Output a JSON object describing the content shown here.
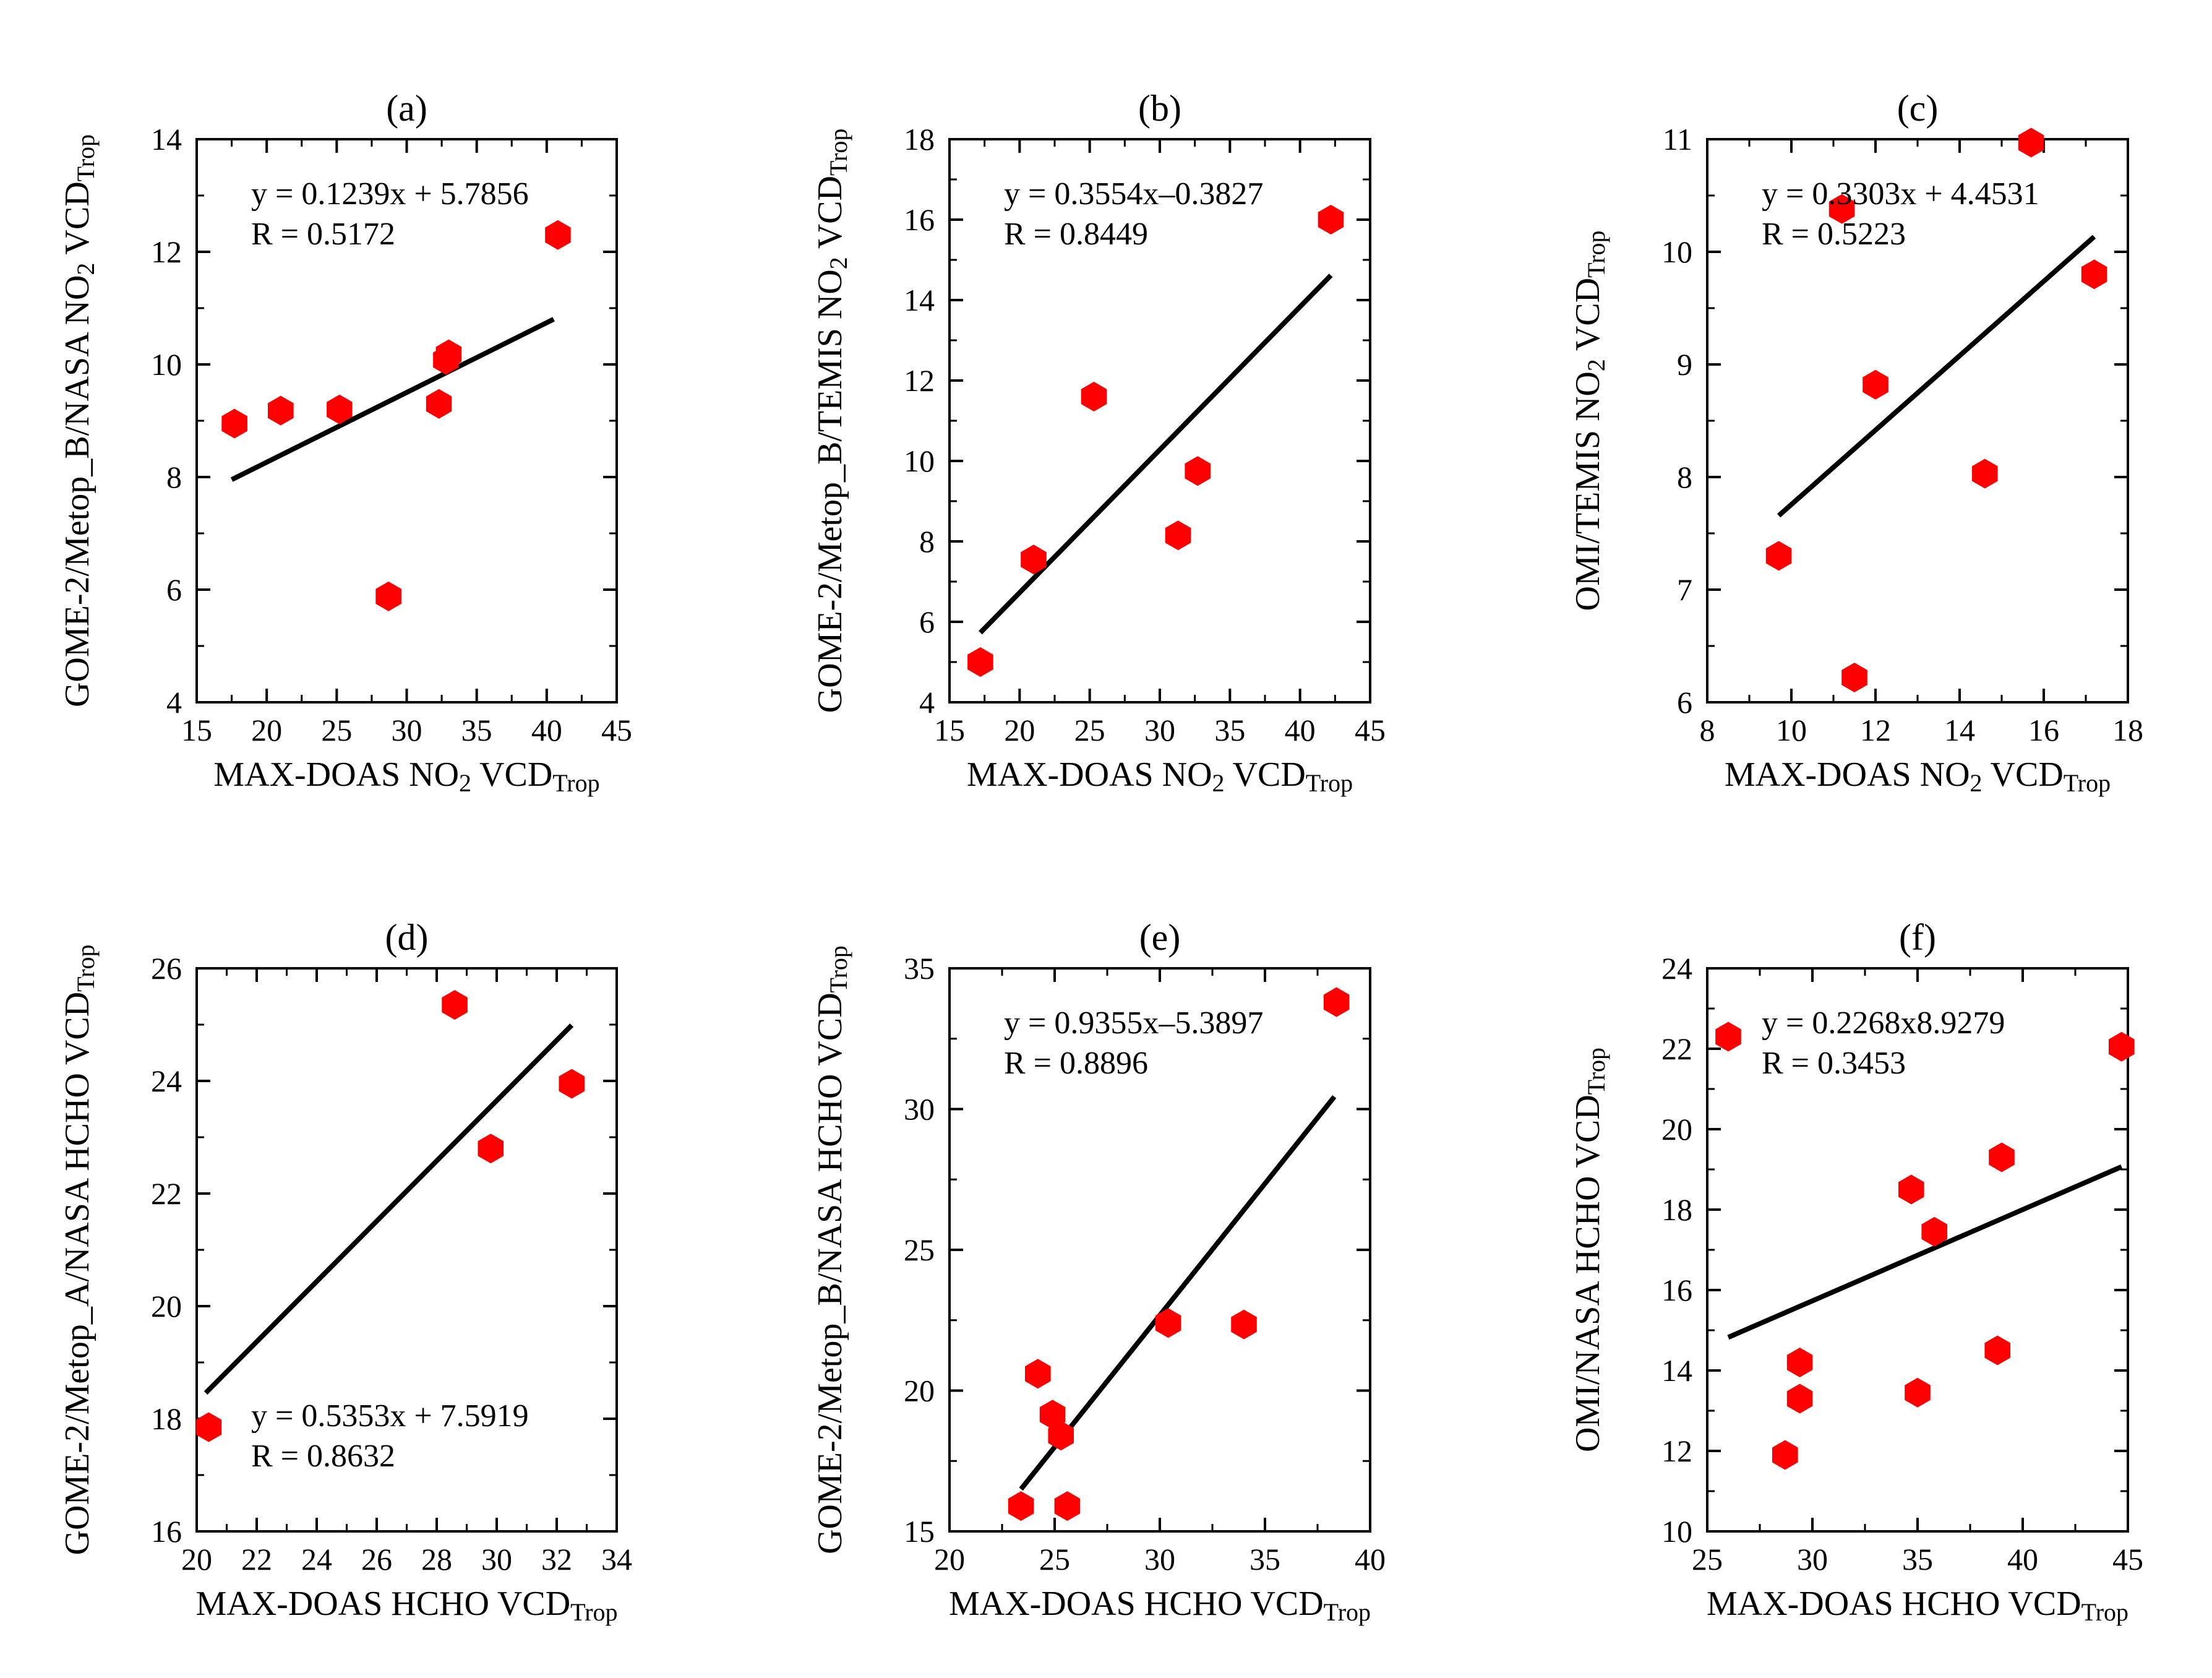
{
  "chart_data": [
    {
      "id": "a",
      "type": "scatter",
      "panel_label": "(a)",
      "ylabel_main": "GOME-2/Metop_B/NASA NO",
      "ylabel_sub1": "2",
      "ylabel_mid": " VCD",
      "ylabel_sub2": "Trop",
      "xlabel_main": "MAX-DOAS NO",
      "xlabel_sub1": "2",
      "xlabel_mid": " VCD",
      "xlabel_sub2": "Trop",
      "xlim": [
        15,
        45
      ],
      "ylim": [
        4,
        14
      ],
      "xticks": [
        15,
        20,
        25,
        30,
        35,
        40,
        45
      ],
      "yticks": [
        4,
        6,
        8,
        10,
        12,
        14
      ],
      "x": [
        17.7,
        21.0,
        25.2,
        28.7,
        32.3,
        32.8,
        33.0,
        40.8
      ],
      "y": [
        8.95,
        9.18,
        9.2,
        5.88,
        9.3,
        10.08,
        10.18,
        12.3
      ],
      "fit": {
        "slope": 0.1239,
        "intercept": 5.7856,
        "x_range": [
          17.5,
          40.5
        ]
      },
      "equation": "y = 0.1239x + 5.7856",
      "r_text": "R = 0.5172",
      "annotation_position": "top-left",
      "marker_color": "#ff0000",
      "line_color": "#000000"
    },
    {
      "id": "b",
      "type": "scatter",
      "panel_label": "(b)",
      "ylabel_main": "GOME-2/Metop_B/TEMIS NO",
      "ylabel_sub1": "2",
      "ylabel_mid": " VCD",
      "ylabel_sub2": "Trop",
      "xlabel_main": "MAX-DOAS NO",
      "xlabel_sub1": "2",
      "xlabel_mid": " VCD",
      "xlabel_sub2": "Trop",
      "xlim": [
        15,
        45
      ],
      "ylim": [
        4,
        18
      ],
      "xticks": [
        15,
        20,
        25,
        30,
        35,
        40,
        45
      ],
      "yticks": [
        4,
        6,
        8,
        10,
        12,
        14,
        16,
        18
      ],
      "x": [
        17.2,
        21.0,
        25.3,
        31.3,
        32.7,
        42.2
      ],
      "y": [
        5.0,
        7.55,
        11.6,
        8.15,
        9.75,
        16.0
      ],
      "fit": {
        "slope": 0.3554,
        "intercept": -0.3827,
        "x_range": [
          17.2,
          42.2
        ]
      },
      "equation": "y = 0.3554x–0.3827",
      "r_text": "R = 0.8449",
      "annotation_position": "top-left",
      "marker_color": "#ff0000",
      "line_color": "#000000"
    },
    {
      "id": "c",
      "type": "scatter",
      "panel_label": "(c)",
      "ylabel_main": "OMI/TEMIS NO",
      "ylabel_sub1": "2",
      "ylabel_mid": " VCD",
      "ylabel_sub2": "Trop",
      "xlabel_main": "MAX-DOAS NO",
      "xlabel_sub1": "2",
      "xlabel_mid": " VCD",
      "xlabel_sub2": "Trop",
      "xlim": [
        8,
        18
      ],
      "ylim": [
        6,
        11
      ],
      "xticks": [
        8,
        10,
        12,
        14,
        16,
        18
      ],
      "yticks": [
        6,
        7,
        8,
        9,
        10,
        11
      ],
      "x": [
        9.7,
        11.2,
        11.5,
        12.0,
        14.6,
        15.7,
        17.2
      ],
      "y": [
        7.3,
        10.38,
        6.22,
        8.82,
        8.03,
        10.97,
        9.8
      ],
      "fit": {
        "slope": 0.3303,
        "intercept": 4.4531,
        "x_range": [
          9.7,
          17.2
        ]
      },
      "equation": "y = 0.3303x + 4.4531",
      "r_text": "R = 0.5223",
      "annotation_position": "top-left",
      "marker_color": "#ff0000",
      "line_color": "#000000"
    },
    {
      "id": "d",
      "type": "scatter",
      "panel_label": "(d)",
      "ylabel_main": "GOME-2/Metop_A/NASA HCHO VCD",
      "ylabel_sub1": "",
      "ylabel_mid": "",
      "ylabel_sub2": "Trop",
      "xlabel_main": "MAX-DOAS HCHO VCD",
      "xlabel_sub1": "",
      "xlabel_mid": "",
      "xlabel_sub2": "Trop",
      "xlim": [
        20,
        34
      ],
      "ylim": [
        16,
        26
      ],
      "xticks": [
        20,
        22,
        24,
        26,
        28,
        30,
        32,
        34
      ],
      "yticks": [
        16,
        18,
        20,
        22,
        24,
        26
      ],
      "x": [
        20.4,
        28.6,
        29.8,
        32.5
      ],
      "y": [
        17.85,
        25.35,
        22.8,
        23.95
      ],
      "fit": {
        "slope": 0.5353,
        "intercept": 7.5919,
        "x_range": [
          20.3,
          32.5
        ]
      },
      "equation": "y = 0.5353x + 7.5919",
      "r_text": "R = 0.8632",
      "annotation_position": "bottom-left",
      "marker_color": "#ff0000",
      "line_color": "#000000"
    },
    {
      "id": "e",
      "type": "scatter",
      "panel_label": "(e)",
      "ylabel_main": "GOME-2/Metop_B/NASA HCHO VCD",
      "ylabel_sub1": "",
      "ylabel_mid": "",
      "ylabel_sub2": "Trop",
      "xlabel_main": "MAX-DOAS HCHO VCD",
      "xlabel_sub1": "",
      "xlabel_mid": "",
      "xlabel_sub2": "Trop",
      "xlim": [
        20,
        40
      ],
      "ylim": [
        15,
        35
      ],
      "xticks": [
        20,
        25,
        30,
        35,
        40
      ],
      "yticks": [
        15,
        20,
        25,
        30,
        35
      ],
      "x": [
        23.4,
        24.2,
        24.9,
        25.3,
        25.6,
        30.4,
        34.0,
        38.4
      ],
      "y": [
        15.9,
        20.6,
        19.15,
        18.4,
        15.9,
        22.4,
        22.35,
        33.8
      ],
      "fit": {
        "slope": 0.9355,
        "intercept": -5.3897,
        "x_range": [
          23.4,
          38.3
        ]
      },
      "equation": "y = 0.9355x–5.3897",
      "r_text": "R = 0.8896",
      "annotation_position": "top-left",
      "marker_color": "#ff0000",
      "line_color": "#000000"
    },
    {
      "id": "f",
      "type": "scatter",
      "panel_label": "(f)",
      "ylabel_main": "OMI/NASA HCHO VCD",
      "ylabel_sub1": "",
      "ylabel_mid": "",
      "ylabel_sub2": "Trop",
      "xlabel_main": "MAX-DOAS HCHO VCD",
      "xlabel_sub1": "",
      "xlabel_mid": "",
      "xlabel_sub2": "Trop",
      "xlim": [
        25,
        45
      ],
      "ylim": [
        10,
        24
      ],
      "xticks": [
        25,
        30,
        35,
        40,
        45
      ],
      "yticks": [
        10,
        12,
        14,
        16,
        18,
        20,
        22,
        24
      ],
      "x": [
        26.0,
        28.7,
        29.4,
        29.4,
        34.7,
        35.0,
        35.8,
        38.8,
        39.0,
        44.7
      ],
      "y": [
        22.3,
        11.9,
        14.2,
        13.3,
        18.5,
        13.45,
        17.45,
        14.5,
        19.3,
        22.05
      ],
      "fit": {
        "slope": 0.2268,
        "intercept": 8.9279,
        "x_range": [
          26.0,
          44.7
        ]
      },
      "equation": "y = 0.2268x8.9279",
      "r_text": "R = 0.3453",
      "annotation_position": "top-left",
      "marker_color": "#ff0000",
      "line_color": "#000000"
    }
  ]
}
